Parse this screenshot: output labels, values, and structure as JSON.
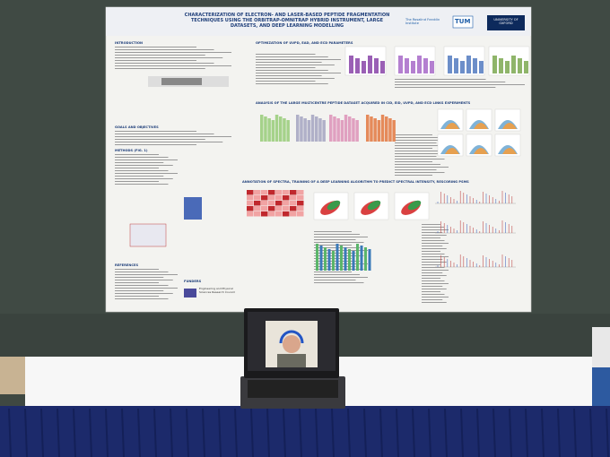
{
  "poster": {
    "title": "CHARACTERIZATION OF ELECTRON- AND LASER-BASED PEPTIDE FRAGMENTATION TECHNIQUES USING THE ORBITRAP-OMNITRAP HYBRID INSTRUMENT, LARGE DATASETS, AND DEEP LEARNING MODELLING",
    "logos": [
      "The Rosalind Franklin Institute",
      "TUM",
      "UNIVERSITY OF OXFORD"
    ],
    "sections": {
      "introduction": "INTRODUCTION",
      "goals": "GOALS AND OBJECTIVES",
      "methods": "METHODS (FIG. 1)",
      "references": "REFERENCES",
      "funders": "FUNDERS",
      "optimization": "OPTIMIZATION OF UVPD, EAD, AND ECD PARAMETERS",
      "analysis": "ANALYSIS OF THE LARGE MULTICENTRE PEPTIDE DATASET ACQUIRED IN CID, EID, UVPD, AND ECD LINKS EXPERIMENTS",
      "annotation": "ANNOTATION OF SPECTRA, TRAINING OF A DEEP LEARNING ALGORITHM TO PREDICT SPECTRAL INTENSITY, RESCORING PSMS"
    },
    "funder_name": "Engineering and Physical Sciences Research Council"
  }
}
